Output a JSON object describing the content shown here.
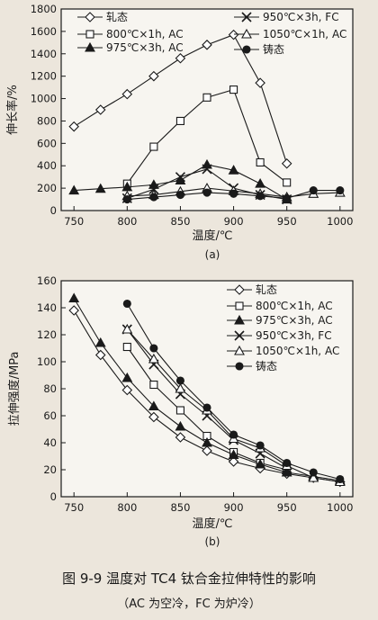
{
  "caption": {
    "title": "图 9-9   温度对 TC4 钛合金拉伸特性的影响",
    "note": "（AC 为空冷，FC 为炉冷）"
  },
  "chart_data": [
    {
      "type": "line",
      "panel_label": "(a)",
      "xlabel": "温度/℃",
      "ylabel": "伸长率/%",
      "xlim": [
        738,
        1012
      ],
      "ylim": [
        0,
        1800
      ],
      "xticks": [
        750,
        800,
        850,
        900,
        950,
        1000
      ],
      "yticks": [
        0,
        200,
        400,
        600,
        800,
        1000,
        1200,
        1400,
        1600,
        1800
      ],
      "legend_placement": "top",
      "series": [
        {
          "name": "轧态",
          "marker": "diamond",
          "fill": "none",
          "x": [
            750,
            775,
            800,
            825,
            850,
            875,
            900,
            925,
            950
          ],
          "y": [
            750,
            900,
            1040,
            1200,
            1360,
            1480,
            1570,
            1140,
            420
          ]
        },
        {
          "name": "800℃×1h, AC",
          "marker": "square",
          "fill": "none",
          "x": [
            800,
            825,
            850,
            875,
            900,
            925,
            950
          ],
          "y": [
            240,
            570,
            800,
            1010,
            1080,
            430,
            250
          ]
        },
        {
          "name": "975℃×3h, AC",
          "marker": "triangle",
          "fill": "solid",
          "x": [
            750,
            775,
            800,
            825,
            850,
            875,
            900,
            925,
            950
          ],
          "y": [
            180,
            195,
            210,
            230,
            270,
            410,
            360,
            240,
            100
          ]
        },
        {
          "name": "950℃×3h, FC",
          "marker": "cross",
          "fill": "solid",
          "x": [
            800,
            825,
            850,
            875,
            900,
            925,
            950
          ],
          "y": [
            110,
            190,
            300,
            370,
            200,
            140,
            100
          ]
        },
        {
          "name": "1050℃×1h, AC",
          "marker": "triangle",
          "fill": "none",
          "x": [
            800,
            825,
            850,
            875,
            900,
            925,
            950,
            975,
            1000
          ],
          "y": [
            130,
            140,
            170,
            200,
            175,
            150,
            120,
            150,
            160
          ]
        },
        {
          "name": "铸态",
          "marker": "circle",
          "fill": "solid",
          "x": [
            800,
            825,
            850,
            875,
            900,
            925,
            950,
            975,
            1000
          ],
          "y": [
            100,
            120,
            140,
            160,
            150,
            130,
            110,
            180,
            180
          ]
        }
      ]
    },
    {
      "type": "line",
      "panel_label": "(b)",
      "xlabel": "温度/℃",
      "ylabel": "拉伸强度/MPa",
      "xlim": [
        738,
        1012
      ],
      "ylim": [
        0,
        160
      ],
      "xticks": [
        750,
        800,
        850,
        900,
        950,
        1000
      ],
      "yticks": [
        0,
        20,
        40,
        60,
        80,
        100,
        120,
        140,
        160
      ],
      "legend_placement": "top-right",
      "series": [
        {
          "name": "轧态",
          "marker": "diamond",
          "fill": "none",
          "x": [
            750,
            775,
            800,
            825,
            850,
            875,
            900,
            925,
            950,
            975,
            1000
          ],
          "y": [
            138,
            105,
            79,
            59,
            44,
            34,
            26,
            21,
            17,
            14,
            11
          ]
        },
        {
          "name": "800℃×1h, AC",
          "marker": "square",
          "fill": "none",
          "x": [
            800,
            825,
            850,
            875,
            900,
            925,
            950
          ],
          "y": [
            111,
            83,
            64,
            45,
            33,
            25,
            20
          ]
        },
        {
          "name": "975℃×3h, AC",
          "marker": "triangle",
          "fill": "solid",
          "x": [
            750,
            775,
            800,
            825,
            850,
            875,
            900,
            925,
            950,
            975,
            1000
          ],
          "y": [
            147,
            114,
            88,
            67,
            52,
            40,
            31,
            24,
            18,
            15,
            12
          ]
        },
        {
          "name": "950℃×3h, FC",
          "marker": "cross",
          "fill": "solid",
          "x": [
            800,
            825,
            850,
            875,
            900,
            925,
            950
          ],
          "y": [
            124,
            98,
            76,
            60,
            42,
            32,
            21
          ]
        },
        {
          "name": "1050℃×1h, AC",
          "marker": "triangle",
          "fill": "none",
          "x": [
            800,
            825,
            850,
            875,
            900,
            925,
            950,
            975,
            1000
          ],
          "y": [
            124,
            102,
            80,
            64,
            43,
            36,
            23,
            14,
            11
          ]
        },
        {
          "name": "铸态",
          "marker": "circle",
          "fill": "solid",
          "x": [
            800,
            825,
            850,
            875,
            900,
            925,
            950,
            975,
            1000
          ],
          "y": [
            143,
            110,
            86,
            66,
            46,
            38,
            25,
            18,
            13
          ]
        }
      ]
    }
  ]
}
